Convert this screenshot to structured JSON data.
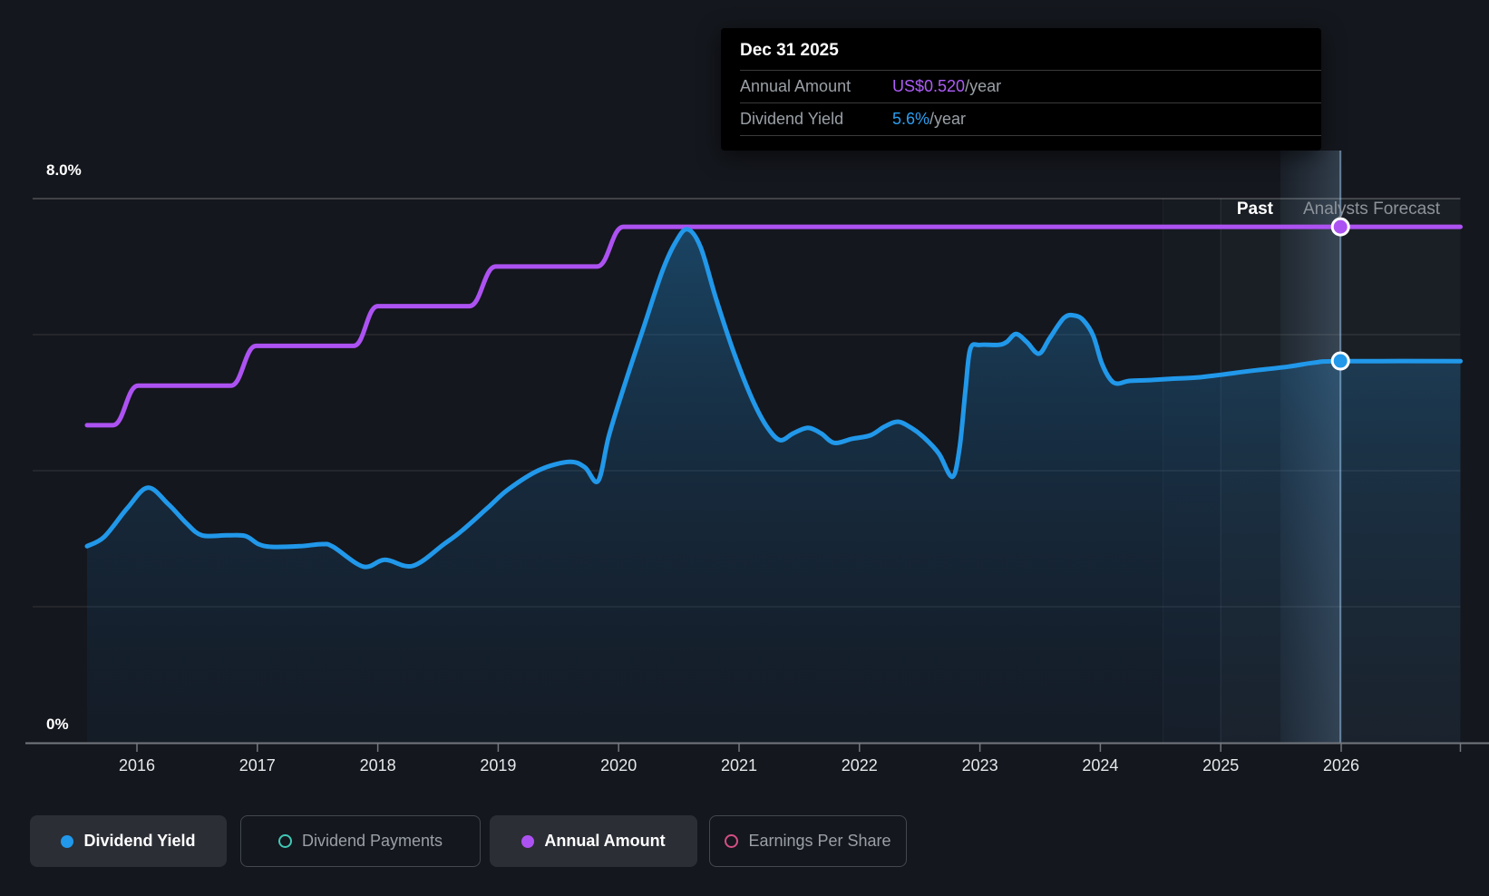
{
  "tooltip": {
    "date": "Dec 31 2025",
    "rows": [
      {
        "label": "Annual Amount",
        "value": "US$0.520",
        "suffix": "/year",
        "color": "#ad5cf7"
      },
      {
        "label": "Dividend Yield",
        "value": "5.6%",
        "suffix": "/year",
        "color": "#2b9ff0"
      }
    ]
  },
  "zones": {
    "past_label": "Past",
    "forecast_label": "Analysts Forecast"
  },
  "axis": {
    "y_top_label": "8.0%",
    "y_bottom_label": "0%"
  },
  "legend": [
    {
      "label": "Dividend Yield",
      "color": "#2198ea",
      "style": "filled",
      "active": true
    },
    {
      "label": "Dividend Payments",
      "color": "#41c8b6",
      "style": "ring",
      "active": false
    },
    {
      "label": "Annual Amount",
      "color": "#ad52f2",
      "style": "filled",
      "active": true
    },
    {
      "label": "Earnings Per Share",
      "color": "#d34f85",
      "style": "ring",
      "active": false
    }
  ],
  "chart_data": {
    "type": "line",
    "title": "Dividend history and forecast",
    "x_ticks": [
      2016,
      2017,
      2018,
      2019,
      2020,
      2021,
      2022,
      2023,
      2024,
      2025,
      2026
    ],
    "xlim": [
      2015.586,
      2026.99
    ],
    "ylim_percent": [
      0,
      8
    ],
    "gridline_percents": [
      8,
      6,
      4,
      2
    ],
    "legend_position": "bottom",
    "series": [
      {
        "name": "Dividend Yield",
        "unit": "percent",
        "color": "#2198ea",
        "area_fill": true,
        "points": [
          [
            2015.586,
            2.89
          ],
          [
            2015.73,
            3.03
          ],
          [
            2015.92,
            3.45
          ],
          [
            2016.09,
            3.75
          ],
          [
            2016.26,
            3.51
          ],
          [
            2016.41,
            3.23
          ],
          [
            2016.54,
            3.05
          ],
          [
            2016.75,
            3.05
          ],
          [
            2016.9,
            3.04
          ],
          [
            2017.01,
            2.92
          ],
          [
            2017.12,
            2.88
          ],
          [
            2017.35,
            2.89
          ],
          [
            2017.54,
            2.92
          ],
          [
            2017.63,
            2.88
          ],
          [
            2017.88,
            2.59
          ],
          [
            2018.06,
            2.69
          ],
          [
            2018.29,
            2.6
          ],
          [
            2018.55,
            2.92
          ],
          [
            2018.7,
            3.12
          ],
          [
            2018.91,
            3.45
          ],
          [
            2019.08,
            3.72
          ],
          [
            2019.34,
            4.01
          ],
          [
            2019.59,
            4.13
          ],
          [
            2019.72,
            4.05
          ],
          [
            2019.83,
            3.85
          ],
          [
            2019.92,
            4.52
          ],
          [
            2020.06,
            5.32
          ],
          [
            2020.21,
            6.12
          ],
          [
            2020.36,
            6.92
          ],
          [
            2020.47,
            7.35
          ],
          [
            2020.57,
            7.55
          ],
          [
            2020.68,
            7.29
          ],
          [
            2020.81,
            6.52
          ],
          [
            2020.96,
            5.72
          ],
          [
            2021.11,
            5.05
          ],
          [
            2021.23,
            4.65
          ],
          [
            2021.34,
            4.45
          ],
          [
            2021.45,
            4.55
          ],
          [
            2021.57,
            4.63
          ],
          [
            2021.68,
            4.55
          ],
          [
            2021.79,
            4.41
          ],
          [
            2021.94,
            4.47
          ],
          [
            2022.09,
            4.52
          ],
          [
            2022.21,
            4.65
          ],
          [
            2022.32,
            4.72
          ],
          [
            2022.43,
            4.63
          ],
          [
            2022.54,
            4.48
          ],
          [
            2022.66,
            4.25
          ],
          [
            2022.77,
            3.91
          ],
          [
            2022.83,
            4.32
          ],
          [
            2022.88,
            5.19
          ],
          [
            2022.92,
            5.79
          ],
          [
            2023.0,
            5.85
          ],
          [
            2023.15,
            5.85
          ],
          [
            2023.22,
            5.89
          ],
          [
            2023.3,
            6.01
          ],
          [
            2023.39,
            5.89
          ],
          [
            2023.49,
            5.72
          ],
          [
            2023.58,
            5.95
          ],
          [
            2023.7,
            6.25
          ],
          [
            2023.79,
            6.28
          ],
          [
            2023.86,
            6.21
          ],
          [
            2023.94,
            5.99
          ],
          [
            2024.01,
            5.59
          ],
          [
            2024.08,
            5.35
          ],
          [
            2024.14,
            5.28
          ],
          [
            2024.24,
            5.32
          ],
          [
            2024.39,
            5.33
          ],
          [
            2024.58,
            5.35
          ],
          [
            2024.8,
            5.37
          ],
          [
            2025.0,
            5.41
          ],
          [
            2025.26,
            5.47
          ],
          [
            2025.56,
            5.53
          ],
          [
            2025.78,
            5.59
          ],
          [
            2025.99,
            5.61
          ],
          [
            2026.99,
            5.61
          ]
        ]
      },
      {
        "name": "Annual Amount",
        "unit": "usd_per_year",
        "color": "#ad52f2",
        "style": "step",
        "points": [
          [
            2015.586,
            0.32
          ],
          [
            2015.8,
            0.32
          ],
          [
            2016.01,
            0.36
          ],
          [
            2016.78,
            0.36
          ],
          [
            2016.99,
            0.4
          ],
          [
            2017.8,
            0.4
          ],
          [
            2018.0,
            0.44
          ],
          [
            2018.76,
            0.44
          ],
          [
            2018.98,
            0.48
          ],
          [
            2019.82,
            0.48
          ],
          [
            2020.04,
            0.52
          ],
          [
            2026.99,
            0.52
          ]
        ]
      }
    ],
    "markers": [
      {
        "series": "Annual Amount",
        "year": 2025.994,
        "value": 0.52,
        "color": "#ad52f2"
      },
      {
        "series": "Dividend Yield",
        "year": 2025.994,
        "value": 5.613,
        "color": "#2198ea"
      }
    ],
    "annotations": {
      "past_forecast_boundary_year": 2025.495,
      "forecast_zone_start_year": 2025.0,
      "faint_band_start_year": 2024.52,
      "hover_year": 2025.994
    }
  }
}
